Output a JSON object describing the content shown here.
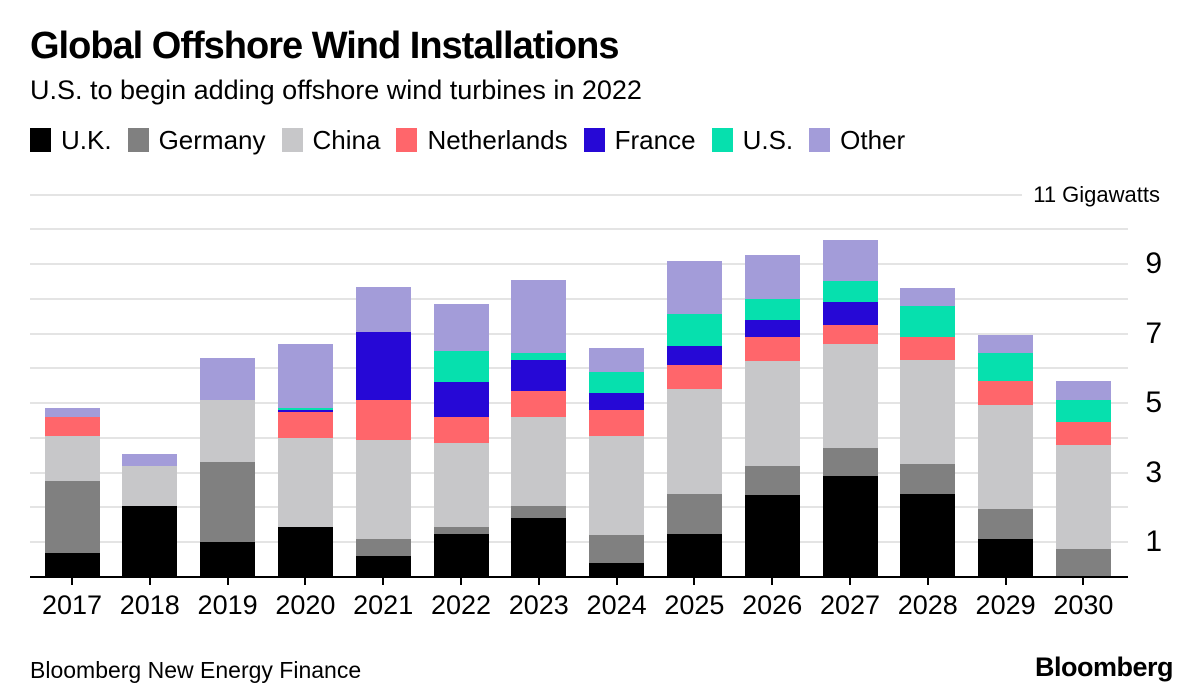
{
  "header": {
    "title": "Global Offshore Wind Installations",
    "subtitle": "U.S. to begin adding offshore wind turbines in 2022"
  },
  "chart_data": {
    "type": "bar",
    "stacked": true,
    "title": "Global Offshore Wind Installations",
    "subtitle": "U.S. to begin adding offshore wind turbines in 2022",
    "unit": "Gigawatts",
    "xlabel": "",
    "ylabel": "Gigawatts",
    "ylim": [
      0,
      11
    ],
    "gridline_step": 1,
    "grid": true,
    "legend_position": "top",
    "y_axis_top_label": "11 Gigawatts",
    "y_ticks_labeled": [
      1,
      3,
      5,
      7,
      9
    ],
    "categories": [
      "2017",
      "2018",
      "2019",
      "2020",
      "2021",
      "2022",
      "2023",
      "2024",
      "2025",
      "2026",
      "2027",
      "2028",
      "2029",
      "2030"
    ],
    "series": [
      {
        "name": "U.K.",
        "color": "#000000",
        "values": [
          0.7,
          2.05,
          1.0,
          1.45,
          0.6,
          1.25,
          1.7,
          0.4,
          1.25,
          2.35,
          2.9,
          2.4,
          1.1,
          0.0
        ]
      },
      {
        "name": "Germany",
        "color": "#808080",
        "values": [
          2.05,
          0.0,
          2.3,
          0.0,
          0.5,
          0.2,
          0.35,
          0.8,
          1.15,
          0.85,
          0.8,
          0.85,
          0.85,
          0.8
        ]
      },
      {
        "name": "China",
        "color": "#c7c7c9",
        "values": [
          1.3,
          1.15,
          1.8,
          2.55,
          2.85,
          2.4,
          2.55,
          2.85,
          3.0,
          3.0,
          3.0,
          3.0,
          3.0,
          3.0
        ]
      },
      {
        "name": "Netherlands",
        "color": "#ff666b",
        "values": [
          0.55,
          0.0,
          0.0,
          0.75,
          1.15,
          0.75,
          0.75,
          0.75,
          0.7,
          0.7,
          0.55,
          0.65,
          0.7,
          0.65
        ]
      },
      {
        "name": "France",
        "color": "#2608d6",
        "values": [
          0.0,
          0.0,
          0.0,
          0.05,
          1.95,
          1.0,
          0.9,
          0.5,
          0.55,
          0.5,
          0.65,
          0.0,
          0.0,
          0.0
        ]
      },
      {
        "name": "U.S.",
        "color": "#06e0ae",
        "values": [
          0.0,
          0.0,
          0.0,
          0.05,
          0.0,
          0.9,
          0.2,
          0.6,
          0.9,
          0.6,
          0.6,
          0.9,
          0.8,
          0.65
        ]
      },
      {
        "name": "Other",
        "color": "#a39cd9",
        "values": [
          0.25,
          0.35,
          1.2,
          1.85,
          1.3,
          1.35,
          2.1,
          0.7,
          1.55,
          1.25,
          1.2,
          0.5,
          0.5,
          0.55
        ]
      }
    ],
    "totals": [
      4.85,
      3.55,
      6.3,
      6.7,
      8.35,
      7.85,
      8.55,
      6.6,
      9.1,
      9.25,
      9.7,
      8.3,
      6.95,
      5.65
    ]
  },
  "footer": {
    "source": "Bloomberg New Energy Finance",
    "logo": "Bloomberg"
  }
}
